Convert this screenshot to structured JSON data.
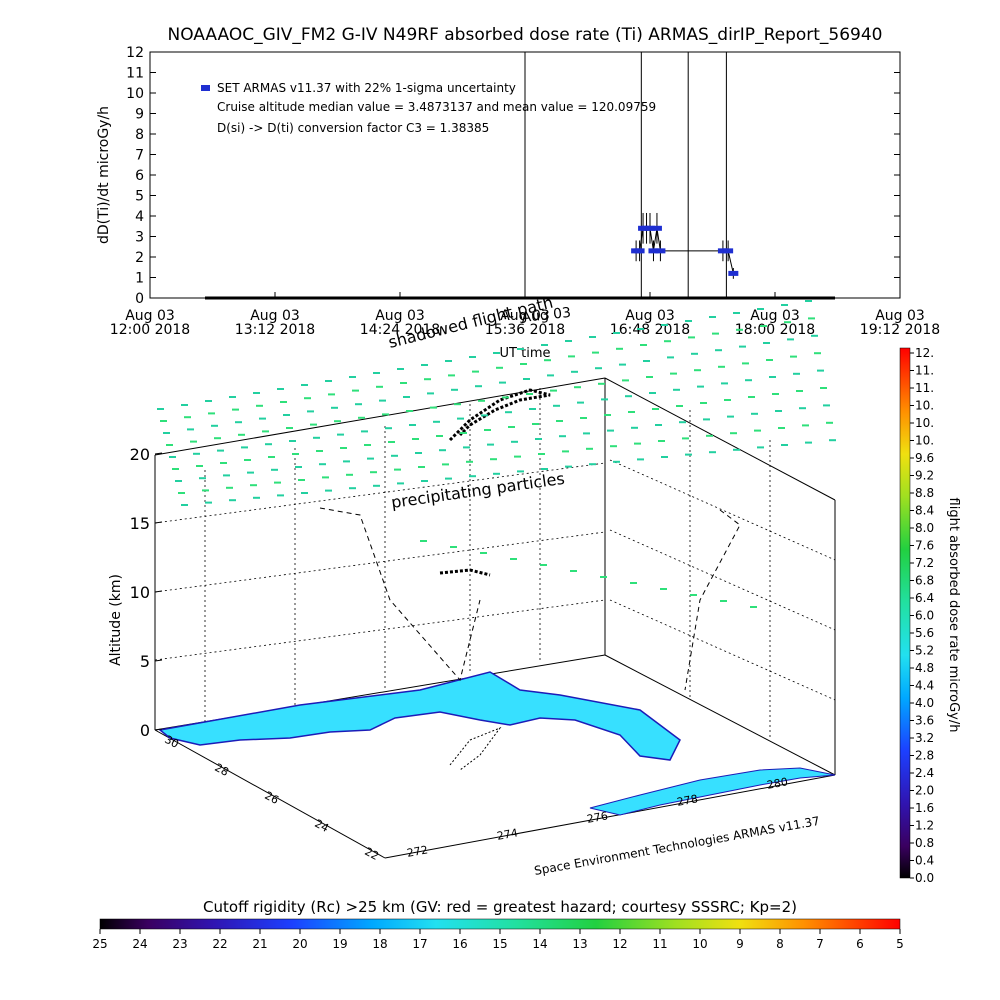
{
  "page_title": "NOAAAOC_GIV_FM2 G-IV    N49RF  absorbed dose rate (Ti) ARMAS_dirIP_Report_56940",
  "chart_data": [
    {
      "type": "line",
      "title": "NOAAAOC_GIV_FM2 G-IV    N49RF  absorbed dose rate (Ti) ARMAS_dirIP_Report_56940",
      "xlabel": "UT time",
      "ylabel": "dD(Ti)/dt microGy/h",
      "ylim": [
        0,
        12
      ],
      "yticks": [
        "0",
        "1",
        "2",
        "3",
        "4",
        "5",
        "6",
        "7",
        "8",
        "9",
        "10",
        "11",
        "12"
      ],
      "xticks": [
        {
          "line1": "Aug 03",
          "line2": "12:00 2018"
        },
        {
          "line1": "Aug 03",
          "line2": "13:12 2018"
        },
        {
          "line1": "Aug 03",
          "line2": "14:24 2018"
        },
        {
          "line1": "Aug 03",
          "line2": "15:36 2018"
        },
        {
          "line1": "Aug 03",
          "line2": "16:48 2018"
        },
        {
          "line1": "Aug 03",
          "line2": "18:00 2018"
        },
        {
          "line1": "Aug 03",
          "line2": "19:12 2018"
        }
      ],
      "xlim": [
        "12:00",
        "19:12"
      ],
      "legend": [
        "SET ARMAS v11.37 with 22% 1-sigma uncertainty",
        "Cruise altitude median value = 3.4873137 and mean value = 120.09759",
        "D(si) -> D(ti) conversion factor C3 = 1.38385"
      ],
      "series": [
        {
          "color": "#1f2fd1",
          "points": [
            {
              "x": "16:40",
              "y": 2.3
            },
            {
              "x": "16:42",
              "y": 2.3
            },
            {
              "x": "16:44",
              "y": 3.4
            },
            {
              "x": "16:46",
              "y": 3.4
            },
            {
              "x": "16:48",
              "y": 3.4
            },
            {
              "x": "16:50",
              "y": 2.3
            },
            {
              "x": "16:52",
              "y": 3.4
            },
            {
              "x": "16:54",
              "y": 2.3
            },
            {
              "x": "17:30",
              "y": 2.3
            },
            {
              "x": "17:33",
              "y": 2.3
            },
            {
              "x": "17:36",
              "y": 1.2
            }
          ]
        }
      ],
      "spikes": [
        "15:36",
        "16:43",
        "17:10",
        "17:32"
      ],
      "overlay_text": [
        "Aug 03",
        "shadowed flight path"
      ]
    },
    {
      "type": "scatter",
      "ylabel": "Altitude (km)",
      "zticks": [
        "0",
        "5",
        "10",
        "15",
        "20"
      ],
      "lat_ticks": [
        "30",
        "28",
        "26",
        "24",
        "22"
      ],
      "lon_ticks": [
        "272",
        "274",
        "276",
        "278",
        "280"
      ],
      "annotation": "precipitating particles",
      "credit": "Space Environment Technologies ARMAS v11.37"
    }
  ],
  "colorbar_right": {
    "label": "flight absorbed dose rate microGy/h",
    "ticks": [
      "12.",
      "11.",
      "11.",
      "10.",
      "10.",
      "10.",
      "9.6",
      "9.2",
      "8.8",
      "8.4",
      "8.0",
      "7.6",
      "7.2",
      "6.8",
      "6.4",
      "6.0",
      "5.6",
      "5.2",
      "4.8",
      "4.4",
      "4.0",
      "3.6",
      "3.2",
      "2.8",
      "2.4",
      "2.0",
      "1.6",
      "1.2",
      "0.8",
      "0.4",
      "0.0"
    ]
  },
  "colorbar_bottom": {
    "title": "Cutoff rigidity (Rc) >25 km (GV: red = greatest hazard; courtesy SSSRC; Kp=2)",
    "ticks": [
      "25",
      "24",
      "23",
      "22",
      "21",
      "20",
      "19",
      "18",
      "17",
      "16",
      "15",
      "14",
      "13",
      "12",
      "11",
      "10",
      "9",
      "8",
      "7",
      "6",
      "5"
    ]
  },
  "colors": {
    "data_marker": "#1f2fd1",
    "land": "#37e0ff",
    "coast": "#1c1cb8",
    "rc_marker": "#2ee07a"
  }
}
